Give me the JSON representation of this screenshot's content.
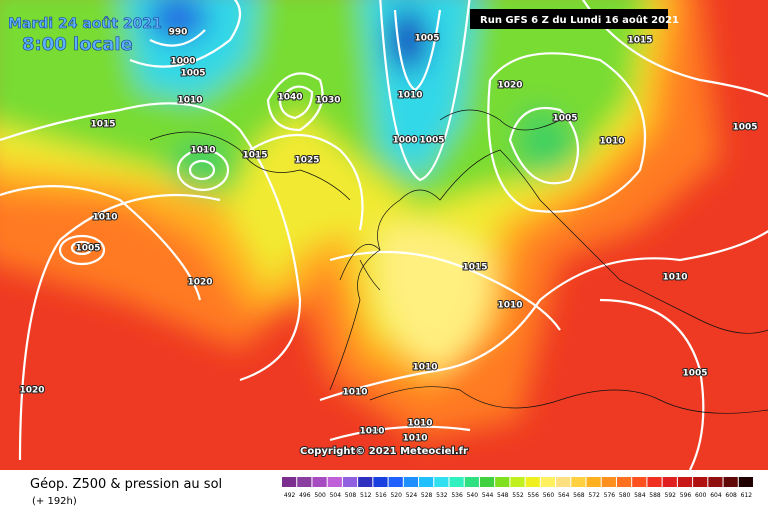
{
  "header": {
    "date": "Mardi 24 août 2021",
    "time": "8:00 locale",
    "run": "Run GFS 6 Z du Lundi 16 août 2021"
  },
  "copyright": "Copyright© 2021 Meteociel.fr",
  "footer": {
    "title": "Géop. Z500 & pression au sol",
    "lead": "(+ 192h)"
  },
  "legend": {
    "values": [
      492,
      496,
      500,
      504,
      508,
      512,
      516,
      520,
      524,
      528,
      532,
      536,
      540,
      544,
      548,
      552,
      556,
      560,
      564,
      568,
      572,
      576,
      580,
      584,
      588,
      592,
      596,
      600,
      604,
      608,
      612
    ],
    "colors": [
      "#7b2e8e",
      "#8a3fa0",
      "#a64cc0",
      "#c060d8",
      "#9060e0",
      "#3030c0",
      "#1840e0",
      "#2060ff",
      "#2090ff",
      "#20c0ff",
      "#30e0f0",
      "#30f0c0",
      "#30e080",
      "#40d040",
      "#80e020",
      "#c0f020",
      "#f0f020",
      "#fff060",
      "#ffe080",
      "#ffd040",
      "#ffb020",
      "#ff9020",
      "#ff7020",
      "#ff5020",
      "#f03020",
      "#e02020",
      "#c81818",
      "#b01010",
      "#901010",
      "#600808",
      "#200000"
    ]
  },
  "pressure_labels": [
    990,
    1000,
    1005,
    1010,
    1040,
    1030,
    1015,
    1025,
    1010,
    1015,
    1010,
    1005,
    1020,
    1020,
    1005,
    1010,
    1000,
    1005,
    1020,
    1005,
    1010,
    1015,
    1005,
    1015,
    1010,
    1010,
    1010,
    1005,
    1010,
    1010,
    1010,
    1010
  ]
}
